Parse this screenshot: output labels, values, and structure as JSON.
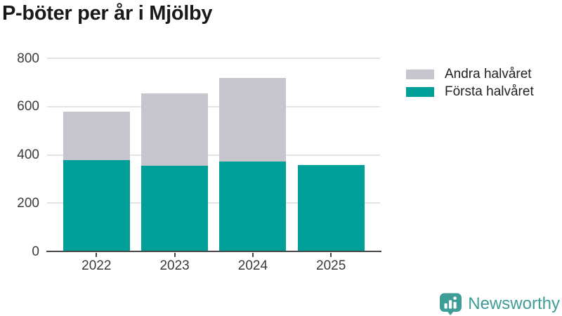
{
  "title": "P-böter per år i Mjölby",
  "chart_data": {
    "type": "bar",
    "stacked": true,
    "title": "P-böter per år i Mjölby",
    "categories": [
      "2022",
      "2023",
      "2024",
      "2025"
    ],
    "series": [
      {
        "name": "Första halvåret",
        "color": "#00a099",
        "values": [
          378,
          355,
          372,
          358
        ]
      },
      {
        "name": "Andra halvåret",
        "color": "#c7c5ce",
        "values": [
          201,
          299,
          348,
          0
        ]
      }
    ],
    "xlabel": "",
    "ylabel": "",
    "ylim": [
      0,
      800
    ],
    "yticks": [
      0,
      200,
      400,
      600,
      800
    ],
    "grid": true,
    "legend_position": "top-right",
    "legend_order": [
      "Andra halvåret",
      "Första halvåret"
    ]
  },
  "colors": {
    "first_half": "#00a099",
    "second_half": "#c7c5ce",
    "axis": "#474747",
    "grid": "#e4e4e7",
    "tick_text": "#3a3a3a",
    "title_text": "#191919",
    "brand": "#3e9d96"
  },
  "branding": {
    "logo_text": "Newsworthy"
  }
}
